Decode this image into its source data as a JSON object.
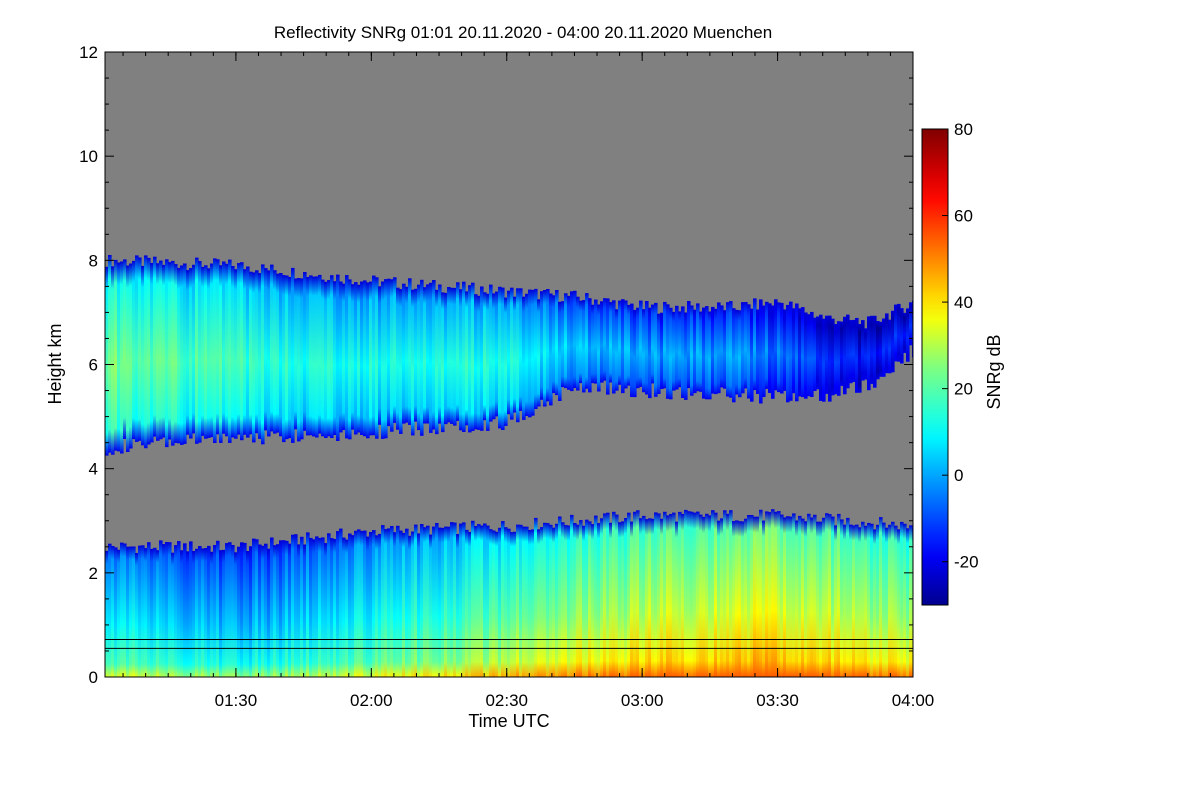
{
  "chart_data": {
    "type": "heatmap",
    "title": "Reflectivity SNRg   01:01 20.11.2020 - 04:00 20.11.2020 Muenchen",
    "xlabel": "Time UTC",
    "ylabel": "Height km",
    "xlim": [
      "01:01",
      "04:00"
    ],
    "ylim": [
      0,
      12
    ],
    "x_ticks": [
      "01:30",
      "02:00",
      "02:30",
      "03:00",
      "03:30",
      "04:00"
    ],
    "y_ticks": [
      0,
      2,
      4,
      6,
      8,
      10,
      12
    ],
    "no_signal_color": "#808080",
    "colorbar": {
      "label": "SNRg dB",
      "range": [
        -30,
        80
      ],
      "ticks": [
        -20,
        0,
        20,
        40,
        60,
        80
      ]
    },
    "layers": [
      {
        "name": "upper cloud layer",
        "time": [
          "01:01",
          "01:30",
          "02:00",
          "02:30",
          "02:45",
          "03:00",
          "03:20",
          "03:30",
          "03:40",
          "03:50",
          "04:00"
        ],
        "top_km": [
          8.0,
          7.9,
          7.6,
          7.4,
          7.3,
          7.1,
          7.1,
          7.2,
          6.9,
          6.8,
          7.2
        ],
        "bottom_km": [
          4.4,
          4.6,
          4.7,
          4.9,
          5.6,
          5.5,
          5.4,
          5.4,
          5.4,
          5.6,
          6.3
        ],
        "snr_db_typical": [
          20,
          12,
          8,
          10,
          0,
          -5,
          -5,
          -10,
          -15,
          -20,
          -15
        ]
      },
      {
        "name": "lower cloud and precipitation layer",
        "time": [
          "01:01",
          "01:30",
          "02:00",
          "02:30",
          "03:00",
          "03:30",
          "04:00"
        ],
        "top_km": [
          2.5,
          2.5,
          2.8,
          2.9,
          3.1,
          3.1,
          2.9
        ],
        "bottom_km": [
          0,
          0,
          0,
          0,
          0,
          0,
          0
        ],
        "snr_db_typical": [
          10,
          0,
          10,
          20,
          30,
          35,
          25
        ],
        "surface_max_snr_db": 55
      }
    ],
    "overlay_lines": [
      {
        "name": "level line upper",
        "height_km": 0.72
      },
      {
        "name": "level line lower",
        "height_km": 0.55
      }
    ]
  }
}
